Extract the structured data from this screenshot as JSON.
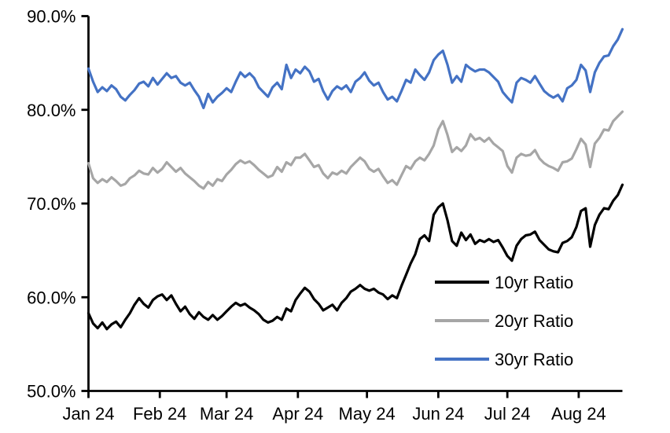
{
  "chart_data": {
    "type": "line",
    "title": "",
    "xlabel": "",
    "ylabel": "",
    "grid": false,
    "legend_position": "inside-lower-right",
    "ylim": [
      50,
      90
    ],
    "y_ticks": [
      {
        "value": 50,
        "label": "50.0%"
      },
      {
        "value": 60,
        "label": "60.0%"
      },
      {
        "value": 70,
        "label": "70.0%"
      },
      {
        "value": 80,
        "label": "80.0%"
      },
      {
        "value": 90,
        "label": "90.0%"
      }
    ],
    "x_axis": {
      "total_days": 232,
      "months": [
        {
          "label": "Jan 24",
          "day": 0
        },
        {
          "label": "Feb 24",
          "day": 31
        },
        {
          "label": "Mar 24",
          "day": 60
        },
        {
          "label": "Apr 24",
          "day": 91
        },
        {
          "label": "May 24",
          "day": 121
        },
        {
          "label": "Jun 24",
          "day": 152
        },
        {
          "label": "Jul 24",
          "day": 182
        },
        {
          "label": "Aug 24",
          "day": 213
        }
      ]
    },
    "sample_start_day": 0,
    "sample_step_days": 2,
    "axis_color": "#000000",
    "series": [
      {
        "name": "10yr Ratio",
        "color": "#000000",
        "values": [
          58.3,
          57.2,
          56.7,
          57.3,
          56.6,
          57.1,
          57.4,
          56.8,
          57.6,
          58.3,
          59.2,
          59.9,
          59.3,
          58.9,
          59.7,
          60.1,
          60.3,
          59.7,
          60.2,
          59.3,
          58.5,
          59.0,
          58.2,
          57.7,
          58.4,
          57.9,
          57.6,
          58.1,
          57.6,
          58.0,
          58.5,
          59.0,
          59.4,
          59.1,
          59.3,
          58.9,
          58.6,
          58.2,
          57.6,
          57.3,
          57.5,
          57.9,
          57.6,
          58.8,
          58.5,
          59.7,
          60.4,
          61.0,
          60.6,
          59.8,
          59.3,
          58.6,
          58.9,
          59.2,
          58.6,
          59.4,
          59.9,
          60.6,
          60.9,
          61.3,
          60.9,
          60.7,
          60.9,
          60.5,
          60.3,
          59.8,
          60.2,
          59.9,
          61.2,
          62.4,
          63.6,
          64.6,
          66.2,
          66.6,
          66.0,
          68.8,
          69.6,
          70.0,
          68.2,
          66.0,
          65.5,
          66.9,
          66.1,
          66.7,
          65.7,
          66.1,
          65.9,
          66.2,
          65.9,
          66.1,
          65.3,
          64.4,
          63.9,
          65.5,
          66.2,
          66.6,
          66.7,
          67.0,
          66.1,
          65.6,
          65.1,
          64.9,
          64.8,
          65.8,
          66.0,
          66.4,
          67.5,
          69.2,
          69.5,
          65.4,
          67.7,
          68.8,
          69.5,
          69.4,
          70.3,
          70.9,
          72.0
        ]
      },
      {
        "name": "20yr Ratio",
        "color": "#A6A6A6",
        "values": [
          74.3,
          72.7,
          72.2,
          72.6,
          72.3,
          72.8,
          72.4,
          71.9,
          72.1,
          72.7,
          73.0,
          73.5,
          73.2,
          73.1,
          73.8,
          73.3,
          73.7,
          74.4,
          73.9,
          73.4,
          73.8,
          73.2,
          72.8,
          72.4,
          71.9,
          71.6,
          72.3,
          71.9,
          72.6,
          72.4,
          73.1,
          73.6,
          74.2,
          74.6,
          74.3,
          74.5,
          74.1,
          73.6,
          73.2,
          72.8,
          73.0,
          73.9,
          73.4,
          74.4,
          74.1,
          74.9,
          74.9,
          75.3,
          74.6,
          73.9,
          74.1,
          73.2,
          72.7,
          73.3,
          73.1,
          73.5,
          73.2,
          73.9,
          74.4,
          74.9,
          74.5,
          73.7,
          73.4,
          73.7,
          72.9,
          72.2,
          72.5,
          72.0,
          73.0,
          74.0,
          73.7,
          74.5,
          74.9,
          74.6,
          75.3,
          76.2,
          77.9,
          78.8,
          77.3,
          75.5,
          76.0,
          75.6,
          76.2,
          77.4,
          76.8,
          77.0,
          76.6,
          77.0,
          76.4,
          76.0,
          75.6,
          74.0,
          73.3,
          74.9,
          75.3,
          75.1,
          75.2,
          75.7,
          74.8,
          74.3,
          74.0,
          73.8,
          73.5,
          74.4,
          74.5,
          74.8,
          75.8,
          76.9,
          76.3,
          73.9,
          76.4,
          77.0,
          77.9,
          77.8,
          78.8,
          79.3,
          79.8
        ]
      },
      {
        "name": "30yr Ratio",
        "color": "#4472C4",
        "values": [
          84.4,
          83.0,
          81.9,
          82.4,
          82.0,
          82.6,
          82.2,
          81.4,
          81.0,
          81.6,
          82.1,
          82.8,
          83.0,
          82.5,
          83.4,
          82.7,
          83.3,
          83.9,
          83.4,
          83.6,
          82.9,
          82.6,
          82.9,
          82.1,
          81.4,
          80.2,
          81.7,
          80.8,
          81.4,
          81.8,
          82.3,
          81.9,
          83.0,
          84.0,
          83.5,
          83.9,
          83.4,
          82.4,
          81.9,
          81.4,
          82.4,
          82.9,
          82.2,
          84.8,
          83.4,
          84.3,
          83.9,
          84.6,
          84.1,
          83.0,
          83.3,
          82.0,
          81.1,
          82.0,
          82.5,
          82.2,
          82.6,
          81.9,
          83.0,
          83.4,
          84.0,
          83.1,
          82.6,
          82.9,
          81.9,
          81.1,
          81.4,
          80.9,
          82.0,
          83.2,
          82.9,
          84.3,
          83.7,
          83.2,
          84.0,
          85.3,
          85.9,
          86.3,
          84.8,
          82.9,
          83.6,
          83.0,
          84.8,
          84.4,
          84.1,
          84.3,
          84.3,
          84.0,
          83.5,
          83.0,
          81.9,
          81.3,
          80.8,
          82.9,
          83.4,
          83.2,
          82.9,
          83.6,
          82.8,
          82.0,
          81.6,
          81.3,
          81.6,
          80.9,
          82.3,
          82.6,
          83.2,
          84.8,
          84.2,
          81.9,
          84.0,
          85.0,
          85.7,
          85.8,
          86.8,
          87.5,
          88.6
        ]
      }
    ]
  }
}
